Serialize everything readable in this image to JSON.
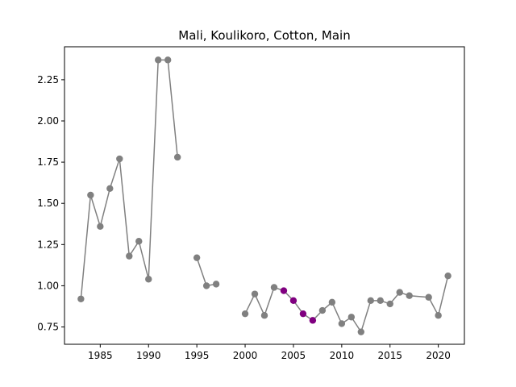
{
  "chart_data": {
    "type": "line",
    "title": "Mali, Koulikoro, Cotton, Main",
    "xlabel": "",
    "ylabel": "",
    "xlim": [
      1981.3,
      2022.7
    ],
    "ylim": [
      0.645,
      2.45
    ],
    "x_ticks": [
      1985,
      1990,
      1995,
      2000,
      2005,
      2010,
      2015,
      2020
    ],
    "x_tick_labels": [
      "1985",
      "1990",
      "1995",
      "2000",
      "2005",
      "2010",
      "2015",
      "2020"
    ],
    "y_ticks": [
      0.75,
      1.0,
      1.25,
      1.5,
      1.75,
      2.0,
      2.25
    ],
    "y_tick_labels": [
      "0.75",
      "1.00",
      "1.25",
      "1.50",
      "1.75",
      "2.00",
      "2.25"
    ],
    "grid": false,
    "line_color": "#808080",
    "highlight_color": "#800080",
    "series": [
      {
        "segments": [
          [
            [
              1983,
              0.92
            ],
            [
              1984,
              1.55
            ],
            [
              1985,
              1.36
            ],
            [
              1986,
              1.59
            ],
            [
              1987,
              1.77
            ],
            [
              1988,
              1.18
            ],
            [
              1989,
              1.27
            ],
            [
              1990,
              1.04
            ],
            [
              1991,
              2.37
            ],
            [
              1992,
              2.37
            ],
            [
              1993,
              1.78
            ]
          ],
          [
            [
              1995,
              1.17
            ],
            [
              1996,
              1.0
            ],
            [
              1997,
              1.01
            ]
          ],
          [
            [
              2000,
              0.83
            ],
            [
              2001,
              0.95
            ],
            [
              2002,
              0.82
            ],
            [
              2003,
              0.99
            ],
            [
              2004,
              0.97
            ],
            [
              2005,
              0.91
            ],
            [
              2006,
              0.83
            ],
            [
              2007,
              0.79
            ],
            [
              2008,
              0.85
            ],
            [
              2009,
              0.9
            ],
            [
              2010,
              0.77
            ],
            [
              2011,
              0.81
            ],
            [
              2012,
              0.72
            ],
            [
              2013,
              0.91
            ],
            [
              2014,
              0.91
            ],
            [
              2015,
              0.89
            ],
            [
              2016,
              0.96
            ],
            [
              2017,
              0.94
            ],
            [
              2019,
              0.93
            ],
            [
              2020,
              0.82
            ],
            [
              2021,
              1.06
            ]
          ]
        ],
        "highlight_years": [
          2004,
          2005,
          2006,
          2007
        ]
      }
    ]
  }
}
